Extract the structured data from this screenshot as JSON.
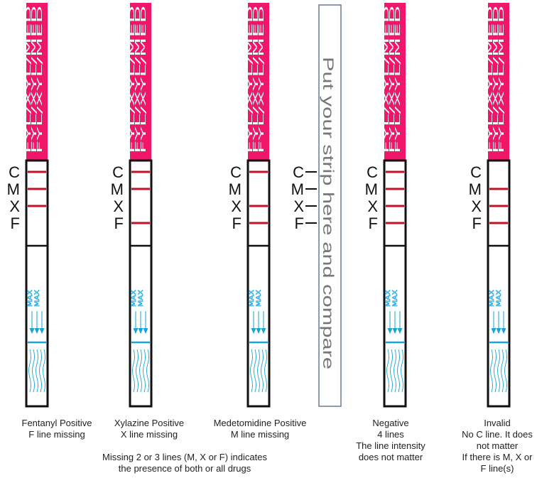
{
  "strip_text": "FYL/XYL/MED",
  "max_text": "MAX",
  "line_letters": [
    "C",
    "M",
    "X",
    "F"
  ],
  "compare_label": "Put your strip here and compare",
  "colors": {
    "pink": "#f0176a",
    "test_line": "#c0102a",
    "blue": "#1aa3d9",
    "frame": "#111111",
    "compare_border": "#6a7a8a",
    "compare_text": "#777777"
  },
  "strips": [
    {
      "id": "fentanyl",
      "lines": [
        true,
        true,
        true,
        false
      ],
      "caption": [
        "Fentanyl Positive",
        "F line missing"
      ]
    },
    {
      "id": "xylazine",
      "lines": [
        true,
        true,
        false,
        true
      ],
      "caption": [
        "Xylazine Positive",
        "X line missing"
      ]
    },
    {
      "id": "medetomidine",
      "lines": [
        true,
        false,
        true,
        true
      ],
      "caption": [
        "Medetomidine Positive",
        "M line missing"
      ]
    },
    {
      "id": "negative",
      "lines": [
        true,
        true,
        true,
        true
      ],
      "caption": [
        "Negative",
        "4 lines",
        "The line intensity",
        "does not matter"
      ]
    },
    {
      "id": "invalid",
      "lines": [
        false,
        true,
        true,
        true
      ],
      "caption": [
        "Invalid",
        "No C line. It does",
        "not matter",
        "If there is M, X or",
        "F line(s)"
      ]
    }
  ],
  "note": [
    "Missing 2 or 3 lines (M, X or F) indicates",
    "the presence of both or all drugs"
  ]
}
